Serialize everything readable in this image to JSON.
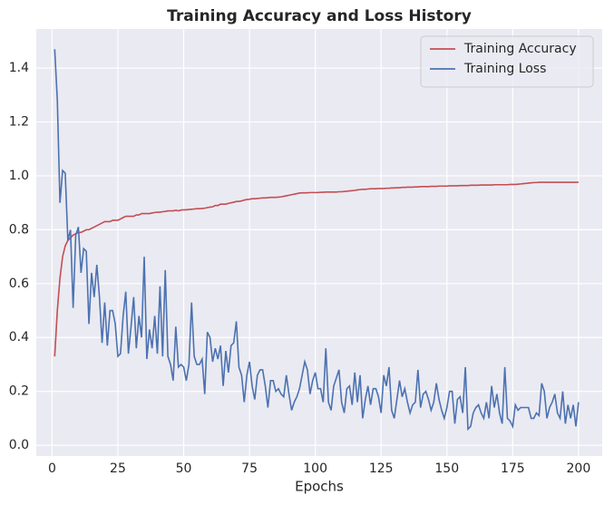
{
  "chart_data": {
    "type": "line",
    "title": "Training Accuracy and Loss History",
    "x_label": "Epochs",
    "x": [
      1,
      2,
      3,
      4,
      5,
      6,
      7,
      8,
      9,
      10,
      11,
      12,
      13,
      14,
      15,
      16,
      17,
      18,
      19,
      20,
      21,
      22,
      23,
      24,
      25,
      26,
      27,
      28,
      29,
      30,
      31,
      32,
      33,
      34,
      35,
      36,
      37,
      38,
      39,
      40,
      41,
      42,
      43,
      44,
      45,
      46,
      47,
      48,
      49,
      50,
      51,
      52,
      53,
      54,
      55,
      56,
      57,
      58,
      59,
      60,
      61,
      62,
      63,
      64,
      65,
      66,
      67,
      68,
      69,
      70,
      71,
      72,
      73,
      74,
      75,
      76,
      77,
      78,
      79,
      80,
      81,
      82,
      83,
      84,
      85,
      86,
      87,
      88,
      89,
      90,
      91,
      92,
      93,
      94,
      95,
      96,
      97,
      98,
      99,
      100,
      101,
      102,
      103,
      104,
      105,
      106,
      107,
      108,
      109,
      110,
      111,
      112,
      113,
      114,
      115,
      116,
      117,
      118,
      119,
      120,
      121,
      122,
      123,
      124,
      125,
      126,
      127,
      128,
      129,
      130,
      131,
      132,
      133,
      134,
      135,
      136,
      137,
      138,
      139,
      140,
      141,
      142,
      143,
      144,
      145,
      146,
      147,
      148,
      149,
      150,
      151,
      152,
      153,
      154,
      155,
      156,
      157,
      158,
      159,
      160,
      161,
      162,
      163,
      164,
      165,
      166,
      167,
      168,
      169,
      170,
      171,
      172,
      173,
      174,
      175,
      176,
      177,
      178,
      179,
      180,
      181,
      182,
      183,
      184,
      185,
      186,
      187,
      188,
      189,
      190,
      191,
      192,
      193,
      194,
      195,
      196,
      197,
      198,
      199,
      200
    ],
    "series": [
      {
        "name": "Training Accuracy",
        "color": "#c44e52",
        "values": [
          0.33,
          0.5,
          0.62,
          0.7,
          0.74,
          0.76,
          0.77,
          0.78,
          0.785,
          0.79,
          0.79,
          0.795,
          0.8,
          0.8,
          0.805,
          0.81,
          0.815,
          0.82,
          0.825,
          0.83,
          0.83,
          0.83,
          0.835,
          0.835,
          0.835,
          0.84,
          0.845,
          0.85,
          0.85,
          0.85,
          0.85,
          0.855,
          0.855,
          0.86,
          0.86,
          0.86,
          0.86,
          0.862,
          0.864,
          0.865,
          0.865,
          0.867,
          0.868,
          0.87,
          0.87,
          0.87,
          0.872,
          0.87,
          0.873,
          0.874,
          0.874,
          0.875,
          0.876,
          0.877,
          0.878,
          0.878,
          0.879,
          0.88,
          0.882,
          0.884,
          0.885,
          0.89,
          0.89,
          0.895,
          0.895,
          0.895,
          0.898,
          0.9,
          0.902,
          0.905,
          0.905,
          0.907,
          0.91,
          0.912,
          0.913,
          0.915,
          0.915,
          0.916,
          0.917,
          0.918,
          0.918,
          0.919,
          0.92,
          0.92,
          0.92,
          0.921,
          0.922,
          0.924,
          0.926,
          0.928,
          0.93,
          0.932,
          0.934,
          0.936,
          0.937,
          0.937,
          0.937,
          0.938,
          0.938,
          0.938,
          0.938,
          0.939,
          0.939,
          0.94,
          0.94,
          0.94,
          0.94,
          0.94,
          0.941,
          0.941,
          0.942,
          0.943,
          0.944,
          0.945,
          0.946,
          0.948,
          0.949,
          0.95,
          0.95,
          0.951,
          0.952,
          0.952,
          0.952,
          0.953,
          0.953,
          0.953,
          0.954,
          0.954,
          0.955,
          0.955,
          0.956,
          0.956,
          0.957,
          0.957,
          0.958,
          0.958,
          0.958,
          0.959,
          0.959,
          0.96,
          0.96,
          0.96,
          0.96,
          0.961,
          0.961,
          0.961,
          0.962,
          0.962,
          0.962,
          0.962,
          0.963,
          0.963,
          0.963,
          0.963,
          0.964,
          0.964,
          0.964,
          0.964,
          0.965,
          0.965,
          0.965,
          0.965,
          0.966,
          0.966,
          0.966,
          0.966,
          0.966,
          0.967,
          0.967,
          0.967,
          0.967,
          0.967,
          0.967,
          0.968,
          0.968,
          0.968,
          0.969,
          0.97,
          0.971,
          0.972,
          0.973,
          0.974,
          0.975,
          0.975,
          0.976,
          0.976,
          0.976,
          0.976,
          0.976,
          0.976,
          0.976,
          0.976,
          0.976,
          0.976,
          0.976,
          0.976,
          0.976,
          0.976,
          0.976,
          0.976
        ]
      },
      {
        "name": "Training Loss",
        "color": "#4c72b0",
        "values": [
          1.47,
          1.28,
          0.9,
          1.02,
          1.01,
          0.76,
          0.8,
          0.51,
          0.78,
          0.81,
          0.64,
          0.73,
          0.72,
          0.45,
          0.64,
          0.55,
          0.67,
          0.55,
          0.38,
          0.53,
          0.37,
          0.5,
          0.5,
          0.45,
          0.33,
          0.34,
          0.48,
          0.57,
          0.34,
          0.44,
          0.55,
          0.36,
          0.48,
          0.4,
          0.7,
          0.32,
          0.43,
          0.36,
          0.48,
          0.34,
          0.59,
          0.33,
          0.65,
          0.33,
          0.3,
          0.24,
          0.44,
          0.29,
          0.3,
          0.29,
          0.24,
          0.3,
          0.53,
          0.33,
          0.3,
          0.3,
          0.32,
          0.19,
          0.42,
          0.4,
          0.31,
          0.36,
          0.32,
          0.37,
          0.22,
          0.35,
          0.27,
          0.37,
          0.38,
          0.46,
          0.29,
          0.26,
          0.16,
          0.26,
          0.31,
          0.22,
          0.17,
          0.26,
          0.28,
          0.28,
          0.22,
          0.14,
          0.24,
          0.24,
          0.2,
          0.21,
          0.19,
          0.18,
          0.26,
          0.19,
          0.13,
          0.16,
          0.18,
          0.21,
          0.26,
          0.31,
          0.28,
          0.19,
          0.24,
          0.27,
          0.21,
          0.21,
          0.16,
          0.36,
          0.16,
          0.13,
          0.22,
          0.25,
          0.28,
          0.16,
          0.12,
          0.21,
          0.22,
          0.15,
          0.27,
          0.16,
          0.26,
          0.1,
          0.17,
          0.22,
          0.15,
          0.21,
          0.21,
          0.18,
          0.12,
          0.26,
          0.22,
          0.29,
          0.13,
          0.1,
          0.17,
          0.24,
          0.18,
          0.21,
          0.16,
          0.12,
          0.15,
          0.16,
          0.28,
          0.14,
          0.19,
          0.2,
          0.17,
          0.13,
          0.16,
          0.23,
          0.17,
          0.13,
          0.1,
          0.14,
          0.2,
          0.2,
          0.08,
          0.17,
          0.18,
          0.12,
          0.29,
          0.06,
          0.07,
          0.12,
          0.14,
          0.15,
          0.12,
          0.1,
          0.16,
          0.1,
          0.22,
          0.14,
          0.19,
          0.12,
          0.08,
          0.29,
          0.1,
          0.09,
          0.07,
          0.15,
          0.13,
          0.14,
          0.14,
          0.14,
          0.14,
          0.1,
          0.1,
          0.12,
          0.11,
          0.23,
          0.2,
          0.1,
          0.14,
          0.16,
          0.19,
          0.12,
          0.1,
          0.2,
          0.08,
          0.15,
          0.1,
          0.15,
          0.07,
          0.16
        ]
      }
    ],
    "xlim": [
      -6,
      209
    ],
    "ylim": [
      -0.04,
      1.545
    ],
    "xticks": [
      0,
      25,
      50,
      75,
      100,
      125,
      150,
      175,
      200
    ],
    "yticks": [
      {
        "value": 0,
        "label": "0.0"
      },
      0.2,
      0.4,
      0.6,
      0.8,
      {
        "value": 1,
        "label": "1.0"
      },
      1.2,
      1.4
    ],
    "grid": true,
    "legend": "upper right"
  }
}
